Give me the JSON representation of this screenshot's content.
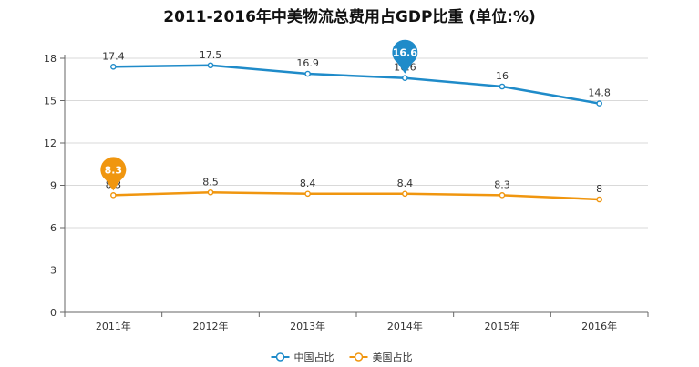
{
  "chart_data": {
    "type": "line",
    "title": "2011-2016年中美物流总费用占GDP比重 (单位:%)",
    "xlabel": "",
    "ylabel": "",
    "categories": [
      "2011年",
      "2012年",
      "2013年",
      "2014年",
      "2015年",
      "2016年"
    ],
    "ylim": [
      0,
      18
    ],
    "yticks": [
      0,
      3,
      6,
      9,
      12,
      15,
      18
    ],
    "grid": true,
    "legend_position": "bottom",
    "series": [
      {
        "name": "中国占比",
        "color": "#1f8bc9",
        "values": [
          17.4,
          17.5,
          16.9,
          16.6,
          16,
          14.8
        ],
        "labels": [
          "17.4",
          "17.5",
          "16.9",
          "16.6",
          "16",
          "14.8"
        ],
        "highlight_index": 3,
        "highlight_label": "16.6"
      },
      {
        "name": "美国占比",
        "color": "#f0960f",
        "values": [
          8.3,
          8.5,
          8.4,
          8.4,
          8.3,
          8
        ],
        "labels": [
          "8.3",
          "8.5",
          "8.4",
          "8.4",
          "8.3",
          "8"
        ],
        "highlight_index": 0,
        "highlight_label": "8.3"
      }
    ]
  }
}
